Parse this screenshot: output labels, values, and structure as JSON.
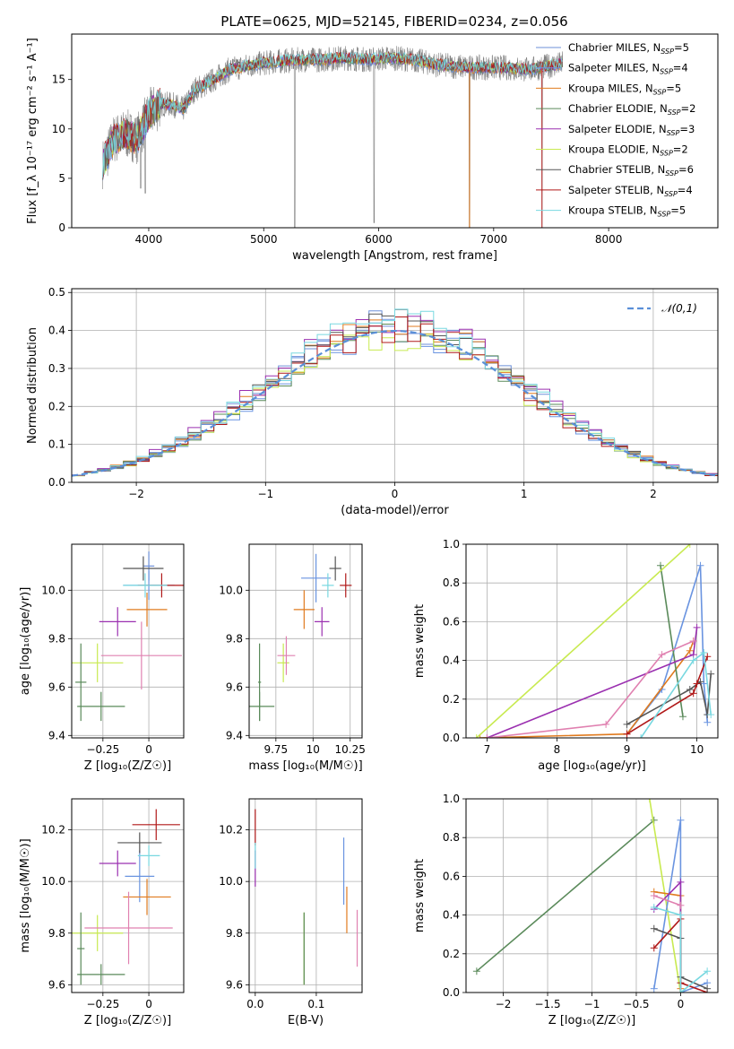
{
  "figure": {
    "title": "PLATE=0625, MJD=52145, FIBERID=0234, z=0.056"
  },
  "models": [
    {
      "name": "Chabrier MILES",
      "nssp": "5",
      "color": "#6c8fd8"
    },
    {
      "name": "Salpeter MILES",
      "nssp": "4",
      "color": "#6a94e0"
    },
    {
      "name": "Kroupa MILES",
      "nssp": "5",
      "color": "#e07b1f"
    },
    {
      "name": "Chabrier ELODIE",
      "nssp": "2",
      "color": "#5a8a5a"
    },
    {
      "name": "Salpeter ELODIE",
      "nssp": "3",
      "color": "#9b30b0"
    },
    {
      "name": "Kroupa ELODIE",
      "nssp": "2",
      "color": "#c8ea50"
    },
    {
      "name": "Chabrier STELIB",
      "nssp": "6",
      "color": "#555555"
    },
    {
      "name": "Salpeter STELIB",
      "nssp": "4",
      "color": "#b01818"
    },
    {
      "name": "Kroupa STELIB",
      "nssp": "5",
      "color": "#78d8e0"
    }
  ],
  "chart_data": [
    {
      "id": "spectrum",
      "type": "line",
      "xlabel": "wavelength [Angstrom, rest frame]",
      "ylabel": "Flux [f_λ 10⁻¹⁷ erg cm⁻² s⁻¹ A⁻¹]",
      "xlim": [
        3330,
        8950
      ],
      "ylim": [
        0,
        19.6
      ],
      "xticks": [
        4000,
        5000,
        6000,
        7000,
        8000
      ],
      "yticks": [
        0,
        5,
        10,
        15
      ],
      "grid": false,
      "legend": "right",
      "observed_color": "#808080",
      "continuum": {
        "x": [
          3600,
          3700,
          3800,
          3900,
          4000,
          4100,
          4200,
          4300,
          4400,
          4500,
          4700,
          4900,
          5100,
          5300,
          5500,
          5700,
          5900,
          6100,
          6300,
          6500,
          6700,
          6900,
          7100,
          7300,
          7500,
          7600
        ],
        "y": [
          6.5,
          9.0,
          9.5,
          9.0,
          11.5,
          12.5,
          12.5,
          12.0,
          14.0,
          14.5,
          16.0,
          16.5,
          16.8,
          17.0,
          17.0,
          17.2,
          17.0,
          17.2,
          17.0,
          16.5,
          16.3,
          16.2,
          16.2,
          16.0,
          16.4,
          16.6
        ]
      },
      "dips": [
        {
          "x": 3930,
          "y": 4.0
        },
        {
          "x": 3970,
          "y": 3.5
        },
        {
          "x": 5270,
          "y": 0
        },
        {
          "x": 5960,
          "y": 0.5
        },
        {
          "x": 6790,
          "y": 0
        },
        {
          "x": 7420,
          "y": 0
        }
      ]
    },
    {
      "id": "residuals",
      "type": "line",
      "xlabel": "(data-model)/error",
      "ylabel": "Normed distribution",
      "xlim": [
        -2.5,
        2.5
      ],
      "ylim": [
        0,
        0.51
      ],
      "xticks": [
        -2,
        -1,
        0,
        1,
        2
      ],
      "yticks": [
        0.0,
        0.1,
        0.2,
        0.3,
        0.4,
        0.5
      ],
      "grid": true,
      "legend": "top-right",
      "reference": {
        "name": "𝒩(0,1)",
        "color": "#5a8fd8",
        "mu": 0,
        "sigma": 1
      },
      "bin_width": 0.1,
      "bins_from": -2.5,
      "hist_peak_offsets": [
        0.02,
        0.0,
        0.03,
        0.01,
        0.05,
        -0.01,
        0.02,
        0.0,
        0.03
      ]
    },
    {
      "id": "age-vs-Z",
      "type": "scatter",
      "xlabel": "Z [log₁₀(Z/Z☉)]",
      "ylabel": "age  [log₁₀(age/yr)]",
      "xlim": [
        -0.42,
        0.19
      ],
      "ylim": [
        9.39,
        10.19
      ],
      "xticks": [
        -0.25,
        0.0
      ],
      "yticks": [
        9.4,
        9.6,
        9.8,
        10.0
      ],
      "grid": true,
      "points": [
        {
          "model": 0,
          "x": 0.0,
          "y": 10.1,
          "xerr": 0.03,
          "yerr": 0.06
        },
        {
          "model": 1,
          "x": 0.0,
          "y": 10.02,
          "xerr": 0.14,
          "yerr": 0.06
        },
        {
          "model": 2,
          "x": -0.01,
          "y": 9.92,
          "xerr": 0.11,
          "yerr": 0.07
        },
        {
          "model": 3,
          "x": -0.26,
          "y": 9.52,
          "xerr": 0.13,
          "yerr": 0.06
        },
        {
          "model": 4,
          "x": -0.17,
          "y": 9.87,
          "xerr": 0.1,
          "yerr": 0.06
        },
        {
          "model": 5,
          "x": -0.28,
          "y": 9.7,
          "xerr": 0.14,
          "yerr": 0.08
        },
        {
          "model": 6,
          "x": -0.03,
          "y": 10.09,
          "xerr": 0.11,
          "yerr": 0.05
        },
        {
          "model": 7,
          "x": 0.07,
          "y": 10.02,
          "xerr": 0.13,
          "yerr": 0.05
        },
        {
          "model": 8,
          "x": -0.02,
          "y": 10.02,
          "xerr": 0.12,
          "yerr": 0.05
        },
        {
          "model": 9,
          "x": -0.04,
          "y": 9.73,
          "xerr": 0.22,
          "yerr": 0.14,
          "color": "#e080b0"
        },
        {
          "model": 10,
          "x": -0.37,
          "y": 9.62,
          "xerr": 0.03,
          "yerr": 0.16,
          "color": "#5a8a5a"
        }
      ]
    },
    {
      "id": "age-vs-mass",
      "type": "scatter",
      "xlabel": "mass [log₁₀(M/M☉)]",
      "ylabel": "",
      "xlim": [
        9.57,
        10.33
      ],
      "ylim": [
        9.39,
        10.19
      ],
      "xticks": [
        9.75,
        10.0,
        10.25
      ],
      "yticks": [
        9.4,
        9.6,
        9.8,
        10.0
      ],
      "grid": true,
      "points": [
        {
          "model": 0,
          "x": 10.02,
          "y": 10.05,
          "xerr": 0.1,
          "yerr": 0.1,
          "color": "#6a94e0"
        },
        {
          "model": 1,
          "x": 10.1,
          "y": 10.02,
          "xerr": 0.04,
          "yerr": 0.05,
          "color": "#78d8e0"
        },
        {
          "model": 2,
          "x": 9.94,
          "y": 9.92,
          "xerr": 0.07,
          "yerr": 0.08,
          "color": "#e07b1f"
        },
        {
          "model": 3,
          "x": 9.64,
          "y": 9.52,
          "xerr": 0.1,
          "yerr": 0.06,
          "color": "#5a8a5a"
        },
        {
          "model": 4,
          "x": 10.06,
          "y": 9.87,
          "xerr": 0.05,
          "yerr": 0.06,
          "color": "#9b30b0"
        },
        {
          "model": 5,
          "x": 9.8,
          "y": 9.7,
          "xerr": 0.04,
          "yerr": 0.08,
          "color": "#c8ea50"
        },
        {
          "model": 6,
          "x": 10.15,
          "y": 10.09,
          "xerr": 0.04,
          "yerr": 0.05,
          "color": "#555555"
        },
        {
          "model": 7,
          "x": 10.22,
          "y": 10.02,
          "xerr": 0.04,
          "yerr": 0.05,
          "color": "#b01818"
        },
        {
          "model": 8,
          "x": 9.82,
          "y": 9.73,
          "xerr": 0.06,
          "yerr": 0.08,
          "color": "#e080b0"
        },
        {
          "model": 9,
          "x": 9.64,
          "y": 9.62,
          "xerr": 0.01,
          "yerr": 0.16,
          "color": "#5a8a5a"
        }
      ]
    },
    {
      "id": "weight-vs-age",
      "type": "line",
      "xlabel": "age  [log₁₀(age/yr)]",
      "ylabel": "mass weight",
      "xlim": [
        6.7,
        10.3
      ],
      "ylim": [
        0,
        1.0
      ],
      "xticks": [
        7,
        8,
        9,
        10
      ],
      "yticks": [
        0.0,
        0.2,
        0.4,
        0.6,
        0.8,
        1.0
      ],
      "grid": true,
      "series": [
        {
          "color": "#6a94e0",
          "x": [
            9.0,
            9.5,
            10.05,
            10.1,
            10.15
          ],
          "y": [
            0.02,
            0.25,
            0.89,
            0.28,
            0.08
          ]
        },
        {
          "color": "#e07b1f",
          "x": [
            6.9,
            9.0,
            9.9,
            9.95
          ],
          "y": [
            0.0,
            0.02,
            0.45,
            0.5
          ]
        },
        {
          "color": "#5a8a5a",
          "x": [
            9.48,
            9.8
          ],
          "y": [
            0.89,
            0.11
          ]
        },
        {
          "color": "#9b30b0",
          "x": [
            7.0,
            9.95,
            10.0
          ],
          "y": [
            0.0,
            0.43,
            0.57
          ]
        },
        {
          "color": "#c8ea50",
          "x": [
            6.85,
            9.9
          ],
          "y": [
            0.0,
            1.0
          ]
        },
        {
          "color": "#555555",
          "x": [
            9.0,
            9.9,
            10.05,
            10.15,
            10.2
          ],
          "y": [
            0.07,
            0.25,
            0.29,
            0.12,
            0.33
          ]
        },
        {
          "color": "#b01818",
          "x": [
            9.0,
            9.95,
            10.0,
            10.15
          ],
          "y": [
            0.02,
            0.23,
            0.28,
            0.42
          ]
        },
        {
          "color": "#e080b0",
          "x": [
            7.0,
            8.7,
            9.5,
            9.95
          ],
          "y": [
            0.0,
            0.07,
            0.43,
            0.5
          ]
        },
        {
          "color": "#78d8e0",
          "x": [
            9.2,
            9.95,
            10.1,
            10.2
          ],
          "y": [
            0.0,
            0.4,
            0.44,
            0.12
          ]
        }
      ]
    },
    {
      "id": "mass-vs-Z",
      "type": "scatter",
      "xlabel": "Z [log₁₀(Z/Z☉)]",
      "ylabel": "mass [log₁₀(M/M☉)]",
      "xlim": [
        -0.42,
        0.19
      ],
      "ylim": [
        9.57,
        10.32
      ],
      "xticks": [
        -0.25,
        0.0
      ],
      "yticks": [
        9.6,
        9.8,
        10.0,
        10.2
      ],
      "grid": true,
      "points": [
        {
          "x": -0.05,
          "y": 10.02,
          "xerr": 0.08,
          "yerr": 0.1,
          "color": "#6a94e0"
        },
        {
          "x": 0.0,
          "y": 10.1,
          "xerr": 0.06,
          "yerr": 0.04,
          "color": "#78d8e0"
        },
        {
          "x": -0.01,
          "y": 9.94,
          "xerr": 0.13,
          "yerr": 0.07,
          "color": "#e07b1f"
        },
        {
          "x": -0.26,
          "y": 9.64,
          "xerr": 0.13,
          "yerr": 0.04,
          "color": "#5a8a5a"
        },
        {
          "x": -0.17,
          "y": 10.07,
          "xerr": 0.1,
          "yerr": 0.05,
          "color": "#9b30b0"
        },
        {
          "x": -0.28,
          "y": 9.8,
          "xerr": 0.14,
          "yerr": 0.07,
          "color": "#c8ea50"
        },
        {
          "x": -0.05,
          "y": 10.15,
          "xerr": 0.12,
          "yerr": 0.04,
          "color": "#555555"
        },
        {
          "x": 0.04,
          "y": 10.22,
          "xerr": 0.13,
          "yerr": 0.06,
          "color": "#b01818"
        },
        {
          "x": -0.11,
          "y": 9.82,
          "xerr": 0.24,
          "yerr": 0.14,
          "color": "#e080b0"
        },
        {
          "x": -0.37,
          "y": 9.74,
          "xerr": 0.02,
          "yerr": 0.14,
          "color": "#5a8a5a"
        }
      ]
    },
    {
      "id": "mass-vs-EBV",
      "type": "scatter",
      "xlabel": "E(B-V)",
      "ylabel": "",
      "xlim": [
        -0.01,
        0.175
      ],
      "ylim": [
        9.57,
        10.32
      ],
      "xticks": [
        0.0,
        0.1
      ],
      "xticklabels": [
        "0.0",
        "0.1"
      ],
      "yticks": [
        9.6,
        9.8,
        10.0,
        10.2
      ],
      "grid": true,
      "points": [
        {
          "x": 0.0,
          "y": 10.21,
          "yerr": 0.07,
          "color": "#b01818"
        },
        {
          "x": 0.0,
          "y": 10.05,
          "yerr": 0.07,
          "color": "#9b30b0"
        },
        {
          "x": 0.0,
          "y": 10.1,
          "yerr": 0.05,
          "color": "#78d8e0"
        },
        {
          "x": 0.08,
          "y": 9.74,
          "yerr": 0.14,
          "color": "#c8ea50"
        },
        {
          "x": 0.08,
          "y": 9.74,
          "yerr": 0.14,
          "color": "#5a8a5a"
        },
        {
          "x": 0.145,
          "y": 10.04,
          "yerr": 0.13,
          "color": "#6a94e0"
        },
        {
          "x": 0.15,
          "y": 9.89,
          "yerr": 0.09,
          "color": "#e07b1f"
        },
        {
          "x": 0.167,
          "y": 9.78,
          "yerr": 0.11,
          "color": "#e080b0"
        }
      ]
    },
    {
      "id": "weight-vs-Z",
      "type": "line",
      "xlabel": "Z [log₁₀(Z/Z☉)]",
      "ylabel": "mass weight",
      "xlim": [
        -2.42,
        0.42
      ],
      "ylim": [
        0,
        1.0
      ],
      "xticks": [
        -2.0,
        -1.5,
        -1.0,
        -0.5,
        0.0
      ],
      "yticks": [
        0.0,
        0.2,
        0.4,
        0.6,
        0.8,
        1.0
      ],
      "grid": true,
      "series": [
        {
          "color": "#5a8a5a",
          "x": [
            -2.3,
            -0.3
          ],
          "y": [
            0.11,
            0.89
          ]
        },
        {
          "color": "#c8ea50",
          "x": [
            -0.35,
            0.0
          ],
          "y": [
            1.0,
            0.0
          ]
        },
        {
          "color": "#6a94e0",
          "x": [
            -0.3,
            0.0,
            0.0,
            0.3
          ],
          "y": [
            0.02,
            0.89,
            0.0,
            0.05
          ]
        },
        {
          "color": "#e07b1f",
          "x": [
            -0.3,
            0.0,
            0.0
          ],
          "y": [
            0.52,
            0.5,
            0.02
          ]
        },
        {
          "color": "#9b30b0",
          "x": [
            -0.3,
            0.0,
            0.0
          ],
          "y": [
            0.43,
            0.57,
            0.0
          ]
        },
        {
          "color": "#b01818",
          "x": [
            -0.3,
            0.0,
            0.0,
            0.3
          ],
          "y": [
            0.23,
            0.38,
            0.05,
            0.0
          ]
        },
        {
          "color": "#555555",
          "x": [
            -0.3,
            0.0,
            0.0,
            0.3
          ],
          "y": [
            0.33,
            0.28,
            0.08,
            0.02
          ]
        },
        {
          "color": "#78d8e0",
          "x": [
            -0.3,
            0.0,
            0.0,
            0.3
          ],
          "y": [
            0.44,
            0.4,
            0.0,
            0.11
          ]
        },
        {
          "color": "#e080b0",
          "x": [
            -0.3,
            0.0
          ],
          "y": [
            0.5,
            0.45
          ]
        }
      ]
    }
  ]
}
